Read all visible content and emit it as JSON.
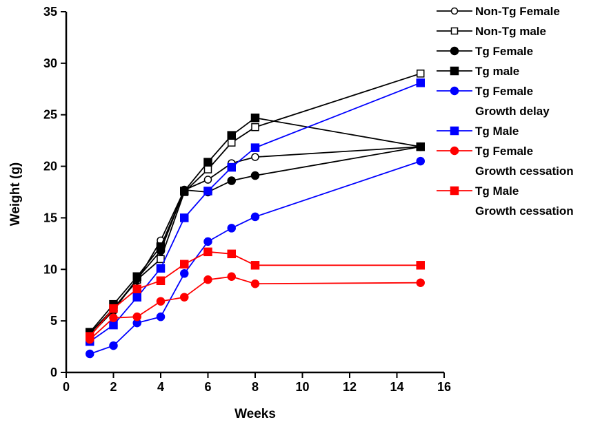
{
  "chart_data": {
    "type": "line",
    "title": "",
    "xlabel": "Weeks",
    "ylabel": "Weight (g)",
    "xlim": [
      0,
      16
    ],
    "ylim": [
      0,
      35
    ],
    "xticks": [
      0,
      2,
      4,
      6,
      8,
      10,
      12,
      14,
      16
    ],
    "yticks": [
      0,
      5,
      10,
      15,
      20,
      25,
      30,
      35
    ],
    "grid": false,
    "legend_position": "right",
    "series": [
      {
        "name": "Non-Tg Female",
        "color": "#000000",
        "marker": "circle",
        "filled": false,
        "x": [
          1,
          2,
          3,
          4,
          5,
          6,
          7,
          8,
          15
        ],
        "y": [
          3.5,
          6.2,
          8.9,
          12.8,
          17.7,
          18.7,
          20.3,
          20.9,
          21.9
        ]
      },
      {
        "name": "Non-Tg male",
        "color": "#000000",
        "marker": "square",
        "filled": false,
        "x": [
          1,
          2,
          3,
          4,
          5,
          6,
          7,
          8,
          15
        ],
        "y": [
          3.8,
          6.2,
          9.0,
          11.0,
          17.5,
          19.7,
          22.3,
          23.8,
          29.0
        ]
      },
      {
        "name": "Tg Female",
        "color": "#000000",
        "marker": "circle",
        "filled": true,
        "x": [
          1,
          2,
          3,
          4,
          5,
          6,
          7,
          8,
          15
        ],
        "y": [
          3.6,
          6.0,
          9.1,
          11.8,
          17.7,
          17.5,
          18.6,
          19.1,
          21.9
        ]
      },
      {
        "name": "Tg male",
        "color": "#000000",
        "marker": "square",
        "filled": true,
        "x": [
          1,
          2,
          3,
          4,
          5,
          6,
          7,
          8,
          15
        ],
        "y": [
          3.9,
          6.6,
          9.3,
          12.2,
          17.6,
          20.4,
          23.0,
          24.7,
          21.9
        ]
      },
      {
        "name": "Tg Female",
        "name2": "Growth delay",
        "color": "#0000ff",
        "marker": "circle",
        "filled": true,
        "x": [
          1,
          2,
          3,
          4,
          5,
          6,
          7,
          8,
          15
        ],
        "y": [
          1.8,
          2.6,
          4.8,
          5.4,
          9.6,
          12.7,
          14.0,
          15.1,
          20.5
        ]
      },
      {
        "name": "Tg Male",
        "color": "#0000ff",
        "marker": "square",
        "filled": true,
        "x": [
          1,
          2,
          3,
          4,
          5,
          6,
          7,
          8,
          15
        ],
        "y": [
          3.0,
          4.6,
          7.3,
          10.1,
          15.0,
          17.6,
          19.9,
          21.8,
          28.1
        ]
      },
      {
        "name": "Tg Female",
        "name2": "Growth cessation",
        "color": "#ff0000",
        "marker": "circle",
        "filled": true,
        "x": [
          1,
          2,
          3,
          4,
          5,
          6,
          7,
          8,
          15
        ],
        "y": [
          3.2,
          5.3,
          5.4,
          6.9,
          7.3,
          9.0,
          9.3,
          8.6,
          8.7
        ]
      },
      {
        "name": "Tg Male",
        "name2": "Growth cessation",
        "color": "#ff0000",
        "marker": "square",
        "filled": true,
        "x": [
          1,
          2,
          3,
          4,
          5,
          6,
          7,
          8,
          15
        ],
        "y": [
          3.5,
          6.2,
          8.1,
          8.9,
          10.5,
          11.7,
          11.5,
          10.4,
          10.4
        ]
      }
    ]
  }
}
